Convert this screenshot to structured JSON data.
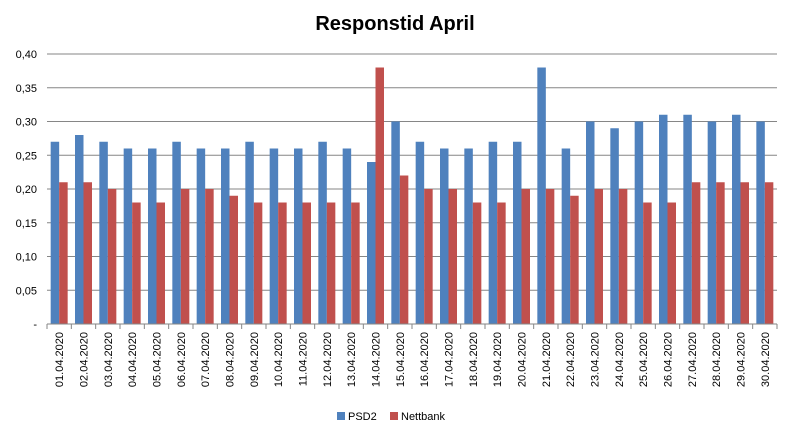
{
  "chart_data": {
    "type": "bar",
    "title": "Responstid April",
    "xlabel": "",
    "ylabel": "",
    "ylim": [
      0,
      0.4
    ],
    "y_ticks": [
      "-",
      "0,05",
      "0,10",
      "0,15",
      "0,20",
      "0,25",
      "0,30",
      "0,35",
      "0,40"
    ],
    "y_tick_values": [
      0,
      0.05,
      0.1,
      0.15,
      0.2,
      0.25,
      0.3,
      0.35,
      0.4
    ],
    "grid": true,
    "legend_position": "bottom",
    "categories": [
      "01.04.2020",
      "02.04.2020",
      "03.04.2020",
      "04.04.2020",
      "05.04.2020",
      "06.04.2020",
      "07.04.2020",
      "08.04.2020",
      "09.04.2020",
      "10.04.2020",
      "11.04.2020",
      "12.04.2020",
      "13.04.2020",
      "14.04.2020",
      "15.04.2020",
      "16.04.2020",
      "17.04.2020",
      "18.04.2020",
      "19.04.2020",
      "20.04.2020",
      "21.04.2020",
      "22.04.2020",
      "23.04.2020",
      "24.04.2020",
      "25.04.2020",
      "26.04.2020",
      "27.04.2020",
      "28.04.2020",
      "29.04.2020",
      "30.04.2020"
    ],
    "series": [
      {
        "name": "PSD2",
        "color": "#4F81BD",
        "values": [
          0.27,
          0.28,
          0.27,
          0.26,
          0.26,
          0.27,
          0.26,
          0.26,
          0.27,
          0.26,
          0.26,
          0.27,
          0.26,
          0.24,
          0.3,
          0.27,
          0.26,
          0.26,
          0.27,
          0.27,
          0.38,
          0.26,
          0.3,
          0.29,
          0.3,
          0.31,
          0.31,
          0.3,
          0.31,
          0.3
        ]
      },
      {
        "name": "Nettbank",
        "color": "#C0504D",
        "values": [
          0.21,
          0.21,
          0.2,
          0.18,
          0.18,
          0.2,
          0.2,
          0.19,
          0.18,
          0.18,
          0.18,
          0.18,
          0.18,
          0.38,
          0.22,
          0.2,
          0.2,
          0.18,
          0.18,
          0.2,
          0.2,
          0.19,
          0.2,
          0.2,
          0.18,
          0.18,
          0.21,
          0.21,
          0.21,
          0.21
        ]
      }
    ]
  }
}
